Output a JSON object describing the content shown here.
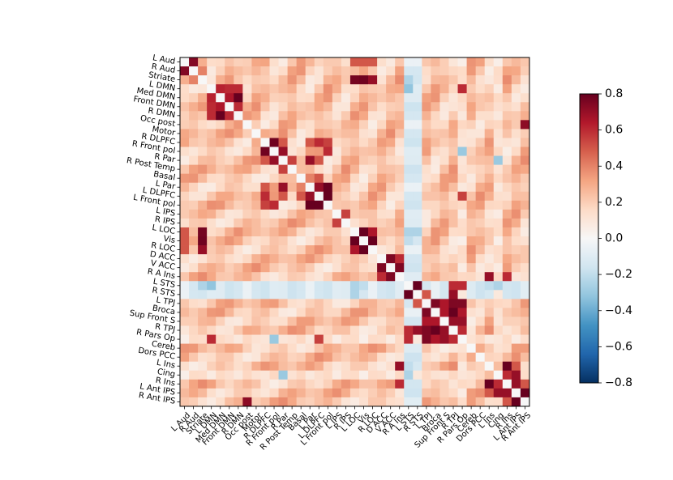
{
  "chart_data": {
    "type": "heatmap",
    "title": "",
    "xlabel": "",
    "ylabel": "",
    "labels": [
      "L Aud",
      "R Aud",
      "Striate",
      "L DMN",
      "Med DMN",
      "Front DMN",
      "R DMN",
      "Occ post",
      "Motor",
      "R DLPFC",
      "R Front pol",
      "R Par",
      "R Post Temp",
      "Basal",
      "L Par",
      "L DLPFC",
      "L Front pol",
      "L IPS",
      "R IPS",
      "L LOC",
      "Vis",
      "R LOC",
      "D ACC",
      "V ACC",
      "R A Ins",
      "L STS",
      "R STS",
      "L TPJ",
      "Broca",
      "Sup Front S",
      "R TPJ",
      "R Pars Op",
      "Cereb",
      "Dors PCC",
      "L Ins",
      "Cing",
      "R Ins",
      "L Ant IPS",
      "R Ant IPS"
    ],
    "colormap": "RdBu_r",
    "vmin": -0.8,
    "vmax": 0.8,
    "colorbar_ticks": [
      "0.8",
      "0.6",
      "0.4",
      "0.2",
      "0.0",
      "−0.2",
      "−0.4",
      "−0.6",
      "−0.8"
    ],
    "diagonal_value": 0.0,
    "pairs": [
      [
        "L Aud",
        "R Aud",
        0.74
      ],
      [
        "L Aud",
        "Vis",
        0.5
      ],
      [
        "L Aud",
        "L LOC",
        0.5
      ],
      [
        "L Aud",
        "R LOC",
        0.5
      ],
      [
        "R Aud",
        "Striate",
        0.4
      ],
      [
        "Striate",
        "L LOC",
        0.77
      ],
      [
        "Striate",
        "Vis",
        0.78
      ],
      [
        "Striate",
        "R LOC",
        0.7
      ],
      [
        "Striate",
        "L STS",
        -0.25
      ],
      [
        "Striate",
        "R STS",
        -0.15
      ],
      [
        "L DMN",
        "Med DMN",
        0.62
      ],
      [
        "L DMN",
        "Front DMN",
        0.6
      ],
      [
        "L DMN",
        "R DMN",
        0.6
      ],
      [
        "L DMN",
        "L STS",
        -0.32
      ],
      [
        "L DMN",
        "R Pars Op",
        0.6
      ],
      [
        "Med DMN",
        "Front DMN",
        0.65
      ],
      [
        "Med DMN",
        "R DMN",
        0.8
      ],
      [
        "Front DMN",
        "R DMN",
        0.6
      ],
      [
        "Occ post",
        "R Ant IPS",
        0.72
      ],
      [
        "Occ post",
        "L LOC",
        0.3
      ],
      [
        "Motor",
        "R DLPFC",
        0.3
      ],
      [
        "Motor",
        "L DLPFC",
        0.3
      ],
      [
        "R DLPFC",
        "R Front pol",
        0.78
      ],
      [
        "R DLPFC",
        "R Par",
        0.5
      ],
      [
        "R DLPFC",
        "L Par",
        0.5
      ],
      [
        "R DLPFC",
        "L DLPFC",
        0.6
      ],
      [
        "R DLPFC",
        "L Front pol",
        0.55
      ],
      [
        "R Front pol",
        "R Par",
        0.7
      ],
      [
        "R Front pol",
        "L Front pol",
        0.6
      ],
      [
        "R Front pol",
        "R Pars Op",
        -0.3
      ],
      [
        "R Par",
        "R Post Temp",
        0.55
      ],
      [
        "R Par",
        "L Par",
        0.7
      ],
      [
        "R Par",
        "L DLPFC",
        0.5
      ],
      [
        "R Par",
        "Cing",
        -0.3
      ],
      [
        "Basal",
        "L Par",
        0.4
      ],
      [
        "Basal",
        "L DLPFC",
        0.5
      ],
      [
        "L Par",
        "L DLPFC",
        0.7
      ],
      [
        "L Par",
        "L Front pol",
        0.8
      ],
      [
        "L DLPFC",
        "L Front pol",
        0.8
      ],
      [
        "L DLPFC",
        "R Pars Op",
        0.55
      ],
      [
        "L IPS",
        "R IPS",
        0.55
      ],
      [
        "L LOC",
        "Vis",
        0.85
      ],
      [
        "L LOC",
        "R LOC",
        0.65
      ],
      [
        "L LOC",
        "L STS",
        -0.25
      ],
      [
        "L LOC",
        "R STS",
        -0.25
      ],
      [
        "Vis",
        "R LOC",
        0.8
      ],
      [
        "Vis",
        "L STS",
        -0.2
      ],
      [
        "D ACC",
        "V ACC",
        0.75
      ],
      [
        "D ACC",
        "R A Ins",
        0.6
      ],
      [
        "V ACC",
        "R A Ins",
        0.75
      ],
      [
        "R A Ins",
        "L Ins",
        0.7
      ],
      [
        "R A Ins",
        "R Ins",
        0.6
      ],
      [
        "L STS",
        "R STS",
        0.8
      ],
      [
        "L STS",
        "R TPJ",
        0.6
      ],
      [
        "L STS",
        "R Pars Op",
        0.6
      ],
      [
        "L STS",
        "L Ins",
        -0.2
      ],
      [
        "L STS",
        "Cing",
        -0.25
      ],
      [
        "R STS",
        "L TPJ",
        0.5
      ],
      [
        "R STS",
        "R TPJ",
        0.7
      ],
      [
        "L TPJ",
        "Broca",
        0.75
      ],
      [
        "L TPJ",
        "Sup Front S",
        0.65
      ],
      [
        "L TPJ",
        "R TPJ",
        0.75
      ],
      [
        "L TPJ",
        "R Pars Op",
        0.75
      ],
      [
        "Broca",
        "Sup Front S",
        0.65
      ],
      [
        "Broca",
        "R TPJ",
        0.8
      ],
      [
        "Broca",
        "R Pars Op",
        0.65
      ],
      [
        "Sup Front S",
        "R TPJ",
        0.7
      ],
      [
        "Sup Front S",
        "R Pars Op",
        0.7
      ],
      [
        "R TPJ",
        "R Pars Op",
        0.6
      ],
      [
        "L Ins",
        "Cing",
        0.25
      ],
      [
        "L Ins",
        "R Ins",
        0.8
      ],
      [
        "L Ins",
        "L Ant IPS",
        0.5
      ],
      [
        "Cing",
        "R Ins",
        0.6
      ],
      [
        "Cing",
        "L Ant IPS",
        0.7
      ],
      [
        "R Ins",
        "L Ant IPS",
        0.7
      ],
      [
        "R Ins",
        "R Ant IPS",
        0.5
      ],
      [
        "L Ant IPS",
        "R Ant IPS",
        0.8
      ]
    ]
  }
}
